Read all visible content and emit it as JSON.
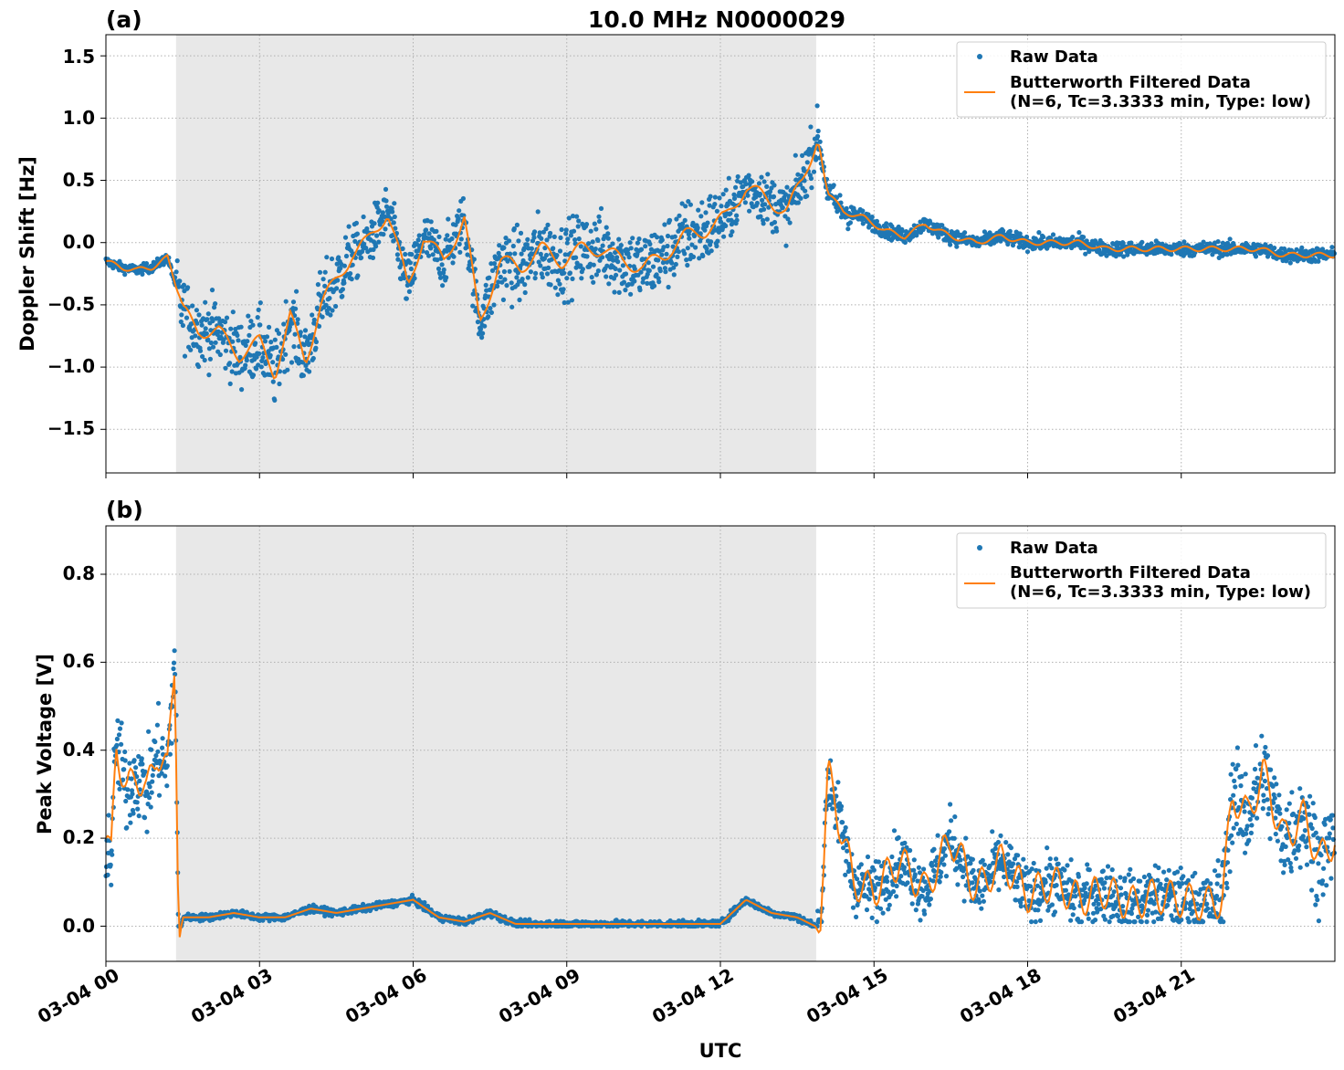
{
  "figure": {
    "title": "10.0 MHz N0000029",
    "xlabel": "UTC",
    "x_tick_labels": [
      "03-04 00",
      "03-04 03",
      "03-04 06",
      "03-04 09",
      "03-04 12",
      "03-04 15",
      "03-04 18",
      "03-04 21"
    ],
    "shaded_region": {
      "start_hour": 1.37,
      "end_hour": 13.87,
      "color": "#e8e8e8"
    },
    "colors": {
      "raw": "#1f77b4",
      "filtered": "#ff7f0e",
      "grid": "#b0b0b0"
    }
  },
  "legend": {
    "raw_label": "Raw Data",
    "filtered_label_line1": "Butterworth Filtered Data",
    "filtered_label_line2": "(N=6, Tc=3.3333 min, Type: low)"
  },
  "panel_a": {
    "label": "(a)",
    "ylabel": "Doppler Shift [Hz]",
    "y_tick_labels": [
      "−1.5",
      "−1.0",
      "−0.5",
      "0.0",
      "0.5",
      "1.0",
      "1.5"
    ]
  },
  "panel_b": {
    "label": "(b)",
    "ylabel": "Peak Voltage [V]",
    "y_tick_labels": [
      "0.0",
      "0.2",
      "0.4",
      "0.6",
      "0.8"
    ]
  },
  "chart_data": [
    {
      "type": "scatter",
      "title": "10.0 MHz N0000029",
      "xlabel": "UTC",
      "ylabel": "Doppler Shift [Hz]",
      "xlim_hours": [
        0,
        24
      ],
      "ylim": [
        -1.85,
        1.67
      ],
      "y_ticks": [
        -1.5,
        -1.0,
        -0.5,
        0.0,
        0.5,
        1.0,
        1.5
      ],
      "grid": true,
      "legend_position": "top-right",
      "series": [
        {
          "name": "Butterworth Filtered Data",
          "type": "line",
          "x_hours": [
            0.0,
            0.3,
            0.6,
            0.9,
            1.2,
            1.37,
            1.5,
            1.8,
            2.2,
            2.6,
            3.0,
            3.3,
            3.6,
            3.9,
            4.2,
            4.5,
            4.8,
            5.1,
            5.5,
            5.9,
            6.2,
            6.6,
            7.0,
            7.3,
            7.7,
            8.1,
            8.5,
            8.9,
            9.3,
            9.7,
            10.1,
            10.5,
            10.9,
            11.3,
            11.7,
            12.1,
            12.5,
            12.9,
            13.3,
            13.6,
            13.9,
            14.1,
            14.4,
            14.8,
            15.2,
            15.6,
            16.0,
            16.5,
            17.0,
            17.5,
            18.0,
            18.5,
            19.0,
            19.5,
            20.0,
            20.5,
            21.0,
            21.5,
            22.0,
            22.5,
            23.0,
            23.5,
            24.0
          ],
          "y": [
            -0.15,
            -0.2,
            -0.22,
            -0.2,
            -0.12,
            -0.35,
            -0.55,
            -0.7,
            -0.72,
            -0.9,
            -0.8,
            -1.05,
            -0.6,
            -0.95,
            -0.5,
            -0.3,
            -0.1,
            0.0,
            0.25,
            -0.35,
            0.05,
            -0.15,
            0.2,
            -0.65,
            -0.15,
            -0.2,
            -0.05,
            -0.15,
            -0.05,
            -0.05,
            -0.15,
            -0.2,
            -0.1,
            0.05,
            0.1,
            0.2,
            0.45,
            0.35,
            0.25,
            0.5,
            0.85,
            0.4,
            0.25,
            0.2,
            0.1,
            0.05,
            0.15,
            0.05,
            0.0,
            0.05,
            0.0,
            0.0,
            0.0,
            -0.05,
            -0.05,
            -0.05,
            -0.05,
            -0.05,
            -0.05,
            -0.05,
            -0.1,
            -0.1,
            -0.1
          ]
        },
        {
          "name": "Raw Data",
          "type": "scatter",
          "note_spread_hz": [
            0.05,
            0.3,
            0.5,
            0.35,
            0.08
          ]
        }
      ]
    },
    {
      "type": "scatter",
      "xlabel": "UTC",
      "ylabel": "Peak Voltage [V]",
      "xlim_hours": [
        0,
        24
      ],
      "ylim": [
        -0.08,
        0.91
      ],
      "y_ticks": [
        0.0,
        0.2,
        0.4,
        0.6,
        0.8
      ],
      "grid": true,
      "legend_position": "top-right",
      "series": [
        {
          "name": "Butterworth Filtered Data",
          "type": "line",
          "x_hours": [
            0.0,
            0.1,
            0.2,
            0.4,
            0.6,
            0.8,
            1.0,
            1.2,
            1.35,
            1.42,
            1.5,
            2.0,
            2.5,
            3.0,
            3.5,
            4.0,
            4.5,
            5.0,
            5.5,
            6.0,
            6.5,
            7.0,
            7.5,
            8.0,
            9.0,
            10.0,
            11.0,
            12.0,
            12.5,
            13.0,
            13.5,
            13.85,
            13.95,
            14.1,
            14.3,
            14.6,
            15.0,
            15.5,
            16.0,
            16.5,
            17.0,
            17.5,
            18.0,
            18.5,
            19.0,
            19.5,
            20.0,
            20.5,
            21.0,
            21.5,
            21.8,
            22.0,
            22.3,
            22.6,
            23.0,
            23.4,
            23.7,
            24.0
          ],
          "y": [
            0.2,
            0.15,
            0.42,
            0.3,
            0.35,
            0.3,
            0.4,
            0.35,
            0.62,
            -0.04,
            0.02,
            0.02,
            0.03,
            0.02,
            0.02,
            0.04,
            0.03,
            0.04,
            0.05,
            0.06,
            0.02,
            0.01,
            0.03,
            0.005,
            0.005,
            0.005,
            0.005,
            0.005,
            0.06,
            0.03,
            0.02,
            0.0,
            -0.02,
            0.35,
            0.25,
            0.1,
            0.08,
            0.15,
            0.08,
            0.2,
            0.08,
            0.15,
            0.07,
            0.1,
            0.06,
            0.08,
            0.05,
            0.07,
            0.06,
            0.05,
            0.06,
            0.3,
            0.25,
            0.35,
            0.2,
            0.25,
            0.15,
            0.2
          ]
        },
        {
          "name": "Raw Data",
          "type": "scatter",
          "note_max_v": [
            0.61,
            0.86,
            0.04,
            0.12,
            0.69,
            0.6,
            0.7
          ]
        }
      ]
    }
  ]
}
